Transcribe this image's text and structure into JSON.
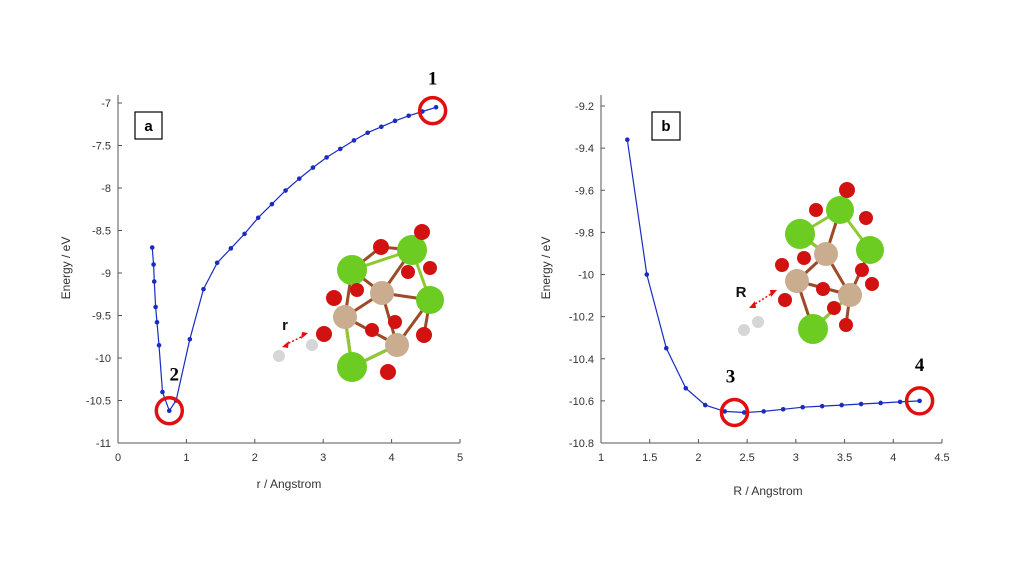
{
  "colors": {
    "series": "#1a2bc0",
    "axis": "#555555",
    "highlight": "#e01010",
    "green_atom": "#6ccc22",
    "tan_atom": "#c9ad8e",
    "red_atom": "#d21111",
    "white_atom": "#d6d6d6",
    "bond_green": "#8ec932",
    "bond_brown": "#9c4a28"
  },
  "chart_data": [
    {
      "type": "line",
      "panel_label": "a",
      "xlabel": "r / Angstrom",
      "ylabel": "Energy / eV",
      "xlim": [
        0,
        5
      ],
      "ylim": [
        -11,
        -6.9
      ],
      "xticks": [
        "0",
        "1",
        "2",
        "3",
        "4",
        "5"
      ],
      "yticks": [
        "-7",
        "-7.5",
        "-8",
        "-8.5",
        "-9",
        "-9.5",
        "-10",
        "-10.5",
        "-11"
      ],
      "x": [
        0.5,
        0.52,
        0.53,
        0.55,
        0.57,
        0.6,
        0.65,
        0.75,
        0.85,
        1.05,
        1.25,
        1.45,
        1.65,
        1.85,
        2.05,
        2.25,
        2.45,
        2.65,
        2.85,
        3.05,
        3.25,
        3.45,
        3.65,
        3.85,
        4.05,
        4.25,
        4.45,
        4.65
      ],
      "y": [
        -8.7,
        -8.9,
        -9.1,
        -9.4,
        -9.58,
        -9.85,
        -10.4,
        -10.62,
        -10.5,
        -9.78,
        -9.19,
        -8.88,
        -8.71,
        -8.54,
        -8.35,
        -8.19,
        -8.03,
        -7.89,
        -7.76,
        -7.64,
        -7.54,
        -7.44,
        -7.35,
        -7.28,
        -7.21,
        -7.15,
        -7.1,
        -7.05
      ],
      "annotations": [
        {
          "text": "1",
          "x": 4.6,
          "y": -7.09
        },
        {
          "text": "2",
          "x": 0.75,
          "y": -10.62
        }
      ],
      "structure_label": "r",
      "grid": false
    },
    {
      "type": "line",
      "panel_label": "b",
      "xlabel": "R / Angstrom",
      "ylabel": "Energy / eV",
      "xlim": [
        1,
        4.5
      ],
      "ylim": [
        -10.8,
        -9.2
      ],
      "xticks": [
        "1",
        "1.5",
        "2",
        "2.5",
        "3",
        "3.5",
        "4",
        "4.5"
      ],
      "yticks": [
        "-9.2",
        "-9.4",
        "-9.6",
        "-9.8",
        "-10",
        "-10.2",
        "-10.4",
        "-10.6",
        "-10.8"
      ],
      "x": [
        1.27,
        1.47,
        1.67,
        1.87,
        2.07,
        2.27,
        2.47,
        2.67,
        2.87,
        3.07,
        3.27,
        3.47,
        3.67,
        3.87,
        4.07,
        4.27
      ],
      "y": [
        -9.36,
        -10.0,
        -10.35,
        -10.54,
        -10.62,
        -10.65,
        -10.655,
        -10.65,
        -10.64,
        -10.63,
        -10.625,
        -10.62,
        -10.615,
        -10.61,
        -10.605,
        -10.6
      ],
      "annotations": [
        {
          "text": "3",
          "x": 2.37,
          "y": -10.655
        },
        {
          "text": "4",
          "x": 4.27,
          "y": -10.6
        }
      ],
      "structure_label": "R",
      "grid": false
    }
  ]
}
